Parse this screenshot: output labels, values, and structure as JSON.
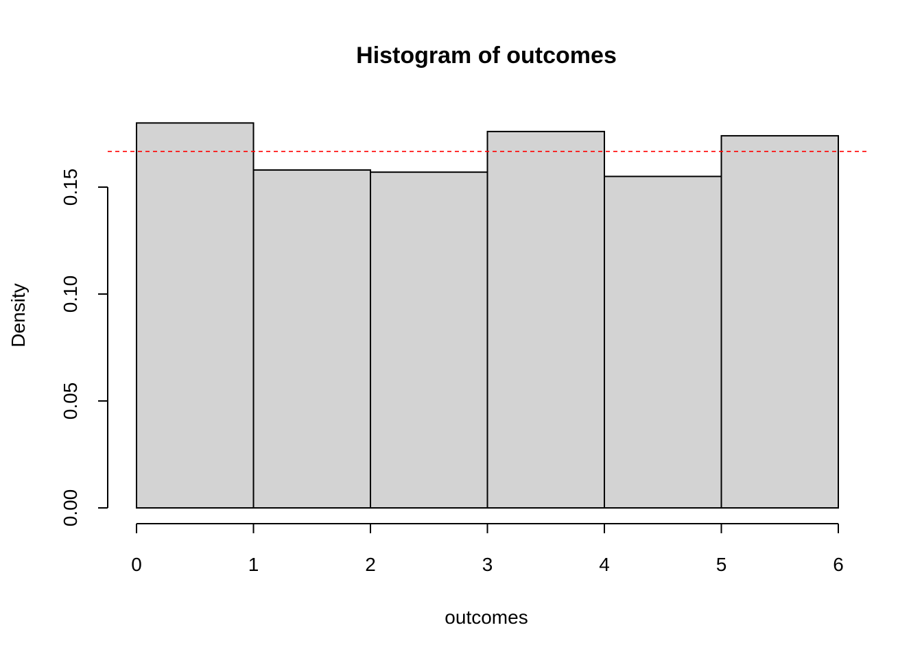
{
  "chart_data": {
    "type": "bar",
    "title": "Histogram of outcomes",
    "xlabel": "outcomes",
    "ylabel": "Density",
    "bins": [
      {
        "from": 0,
        "to": 1,
        "density": 0.18
      },
      {
        "from": 1,
        "to": 2,
        "density": 0.158
      },
      {
        "from": 2,
        "to": 3,
        "density": 0.157
      },
      {
        "from": 3,
        "to": 4,
        "density": 0.176
      },
      {
        "from": 4,
        "to": 5,
        "density": 0.155
      },
      {
        "from": 5,
        "to": 6,
        "density": 0.174
      }
    ],
    "xlim": [
      0,
      6
    ],
    "ylim": [
      0,
      0.18
    ],
    "x_ticks": [
      "0",
      "1",
      "2",
      "3",
      "4",
      "5",
      "6"
    ],
    "y_ticks": [
      "0.00",
      "0.05",
      "0.10",
      "0.15"
    ],
    "reference_line": {
      "y": 0.1667,
      "color": "#ff0000",
      "style": "dashed"
    },
    "bar_color": "#d3d3d3",
    "grid": false,
    "legend": "none"
  }
}
